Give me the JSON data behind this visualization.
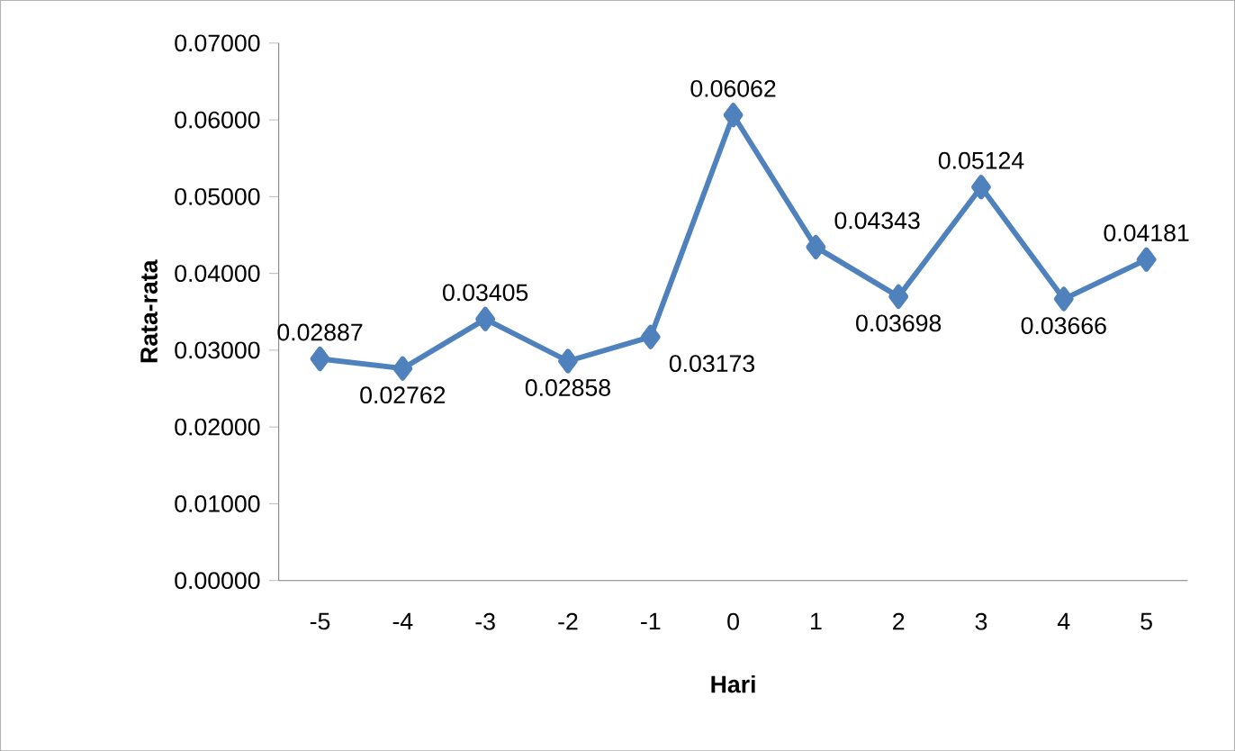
{
  "chart_data": {
    "type": "line",
    "xlabel": "Hari",
    "ylabel": "Rata-rata",
    "categories": [
      "-5",
      "-4",
      "-3",
      "-2",
      "-1",
      "0",
      "1",
      "2",
      "3",
      "4",
      "5"
    ],
    "values": [
      0.02887,
      0.02762,
      0.03405,
      0.02858,
      0.03173,
      0.06062,
      0.04343,
      0.03698,
      0.05124,
      0.03666,
      0.04181
    ],
    "value_labels": [
      "0.02887",
      "0.02762",
      "0.03405",
      "0.02858",
      "0.03173",
      "0.06062",
      "0.04343",
      "0.03698",
      "0.05124",
      "0.03666",
      "0.04181"
    ],
    "color": "#4f81bd",
    "marker": "diamond",
    "line_style": "solid",
    "grid": false,
    "ylim": [
      0,
      0.07
    ],
    "yticks": [
      {
        "value": 0,
        "label": "0.00000"
      },
      {
        "value": 0.01,
        "label": "0.01000"
      },
      {
        "value": 0.02,
        "label": "0.02000"
      },
      {
        "value": 0.03,
        "label": "0.03000"
      },
      {
        "value": 0.04,
        "label": "0.04000"
      },
      {
        "value": 0.05,
        "label": "0.05000"
      },
      {
        "value": 0.06,
        "label": "0.06000"
      },
      {
        "value": 0.07,
        "label": "0.07000"
      }
    ]
  }
}
